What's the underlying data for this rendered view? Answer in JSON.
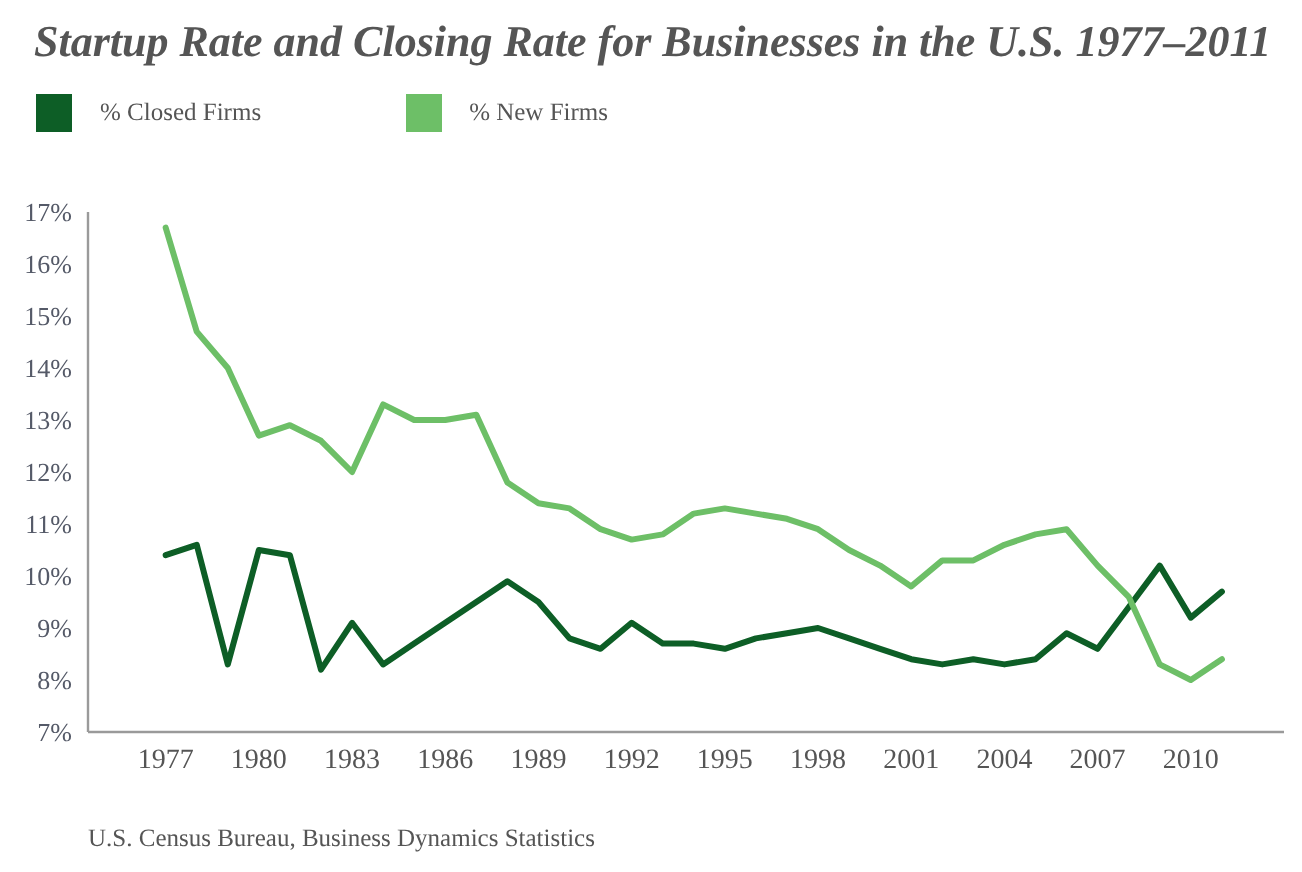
{
  "chart_data": {
    "type": "line",
    "title": "Startup Rate and Closing Rate for Businesses in the U.S. 1977–2011",
    "x": [
      1977,
      1978,
      1979,
      1980,
      1981,
      1982,
      1983,
      1984,
      1985,
      1986,
      1987,
      1988,
      1989,
      1990,
      1991,
      1992,
      1993,
      1994,
      1995,
      1996,
      1997,
      1998,
      1999,
      2000,
      2001,
      2002,
      2003,
      2004,
      2005,
      2006,
      2007,
      2008,
      2009,
      2010,
      2011
    ],
    "series": [
      {
        "name": "% Closed Firms",
        "color": "#0d5e26",
        "values": [
          10.4,
          10.6,
          8.3,
          10.5,
          10.4,
          8.2,
          9.1,
          8.3,
          8.7,
          9.1,
          9.5,
          9.9,
          9.5,
          8.8,
          8.6,
          9.1,
          8.7,
          8.7,
          8.6,
          8.8,
          8.9,
          9.0,
          8.8,
          8.6,
          8.4,
          8.3,
          8.4,
          8.3,
          8.4,
          8.9,
          8.6,
          9.4,
          10.2,
          9.2,
          9.7
        ]
      },
      {
        "name": "% New Firms",
        "color": "#6dbf67",
        "values": [
          16.7,
          14.7,
          14.0,
          12.7,
          12.9,
          12.6,
          12.0,
          13.3,
          13.0,
          13.0,
          13.1,
          11.8,
          11.4,
          11.3,
          10.9,
          10.7,
          10.8,
          11.2,
          11.3,
          11.2,
          11.1,
          10.9,
          10.5,
          10.2,
          9.8,
          10.3,
          10.3,
          10.6,
          10.8,
          10.9,
          10.2,
          9.6,
          8.3,
          8.0,
          8.4
        ]
      }
    ],
    "xlim": [
      1974.5,
      2013
    ],
    "xticks": [
      1977,
      1980,
      1983,
      1986,
      1989,
      1992,
      1995,
      1998,
      2001,
      2004,
      2007,
      2010
    ],
    "ylim": [
      7,
      17
    ],
    "yticks": [
      {
        "value": 7,
        "label": "7%"
      },
      {
        "value": 8,
        "label": "8%"
      },
      {
        "value": 9,
        "label": "9%"
      },
      {
        "value": 10,
        "label": "10%"
      },
      {
        "value": 11,
        "label": "11%"
      },
      {
        "value": 12,
        "label": "12%"
      },
      {
        "value": 13,
        "label": "13%"
      },
      {
        "value": 14,
        "label": "14%"
      },
      {
        "value": 15,
        "label": "15%"
      },
      {
        "value": 16,
        "label": "16%"
      },
      {
        "value": 17,
        "label": "17%"
      }
    ],
    "legend": "top left",
    "annotations": [
      "U.S. Census Bureau, Business Dynamics Statistics"
    ]
  }
}
